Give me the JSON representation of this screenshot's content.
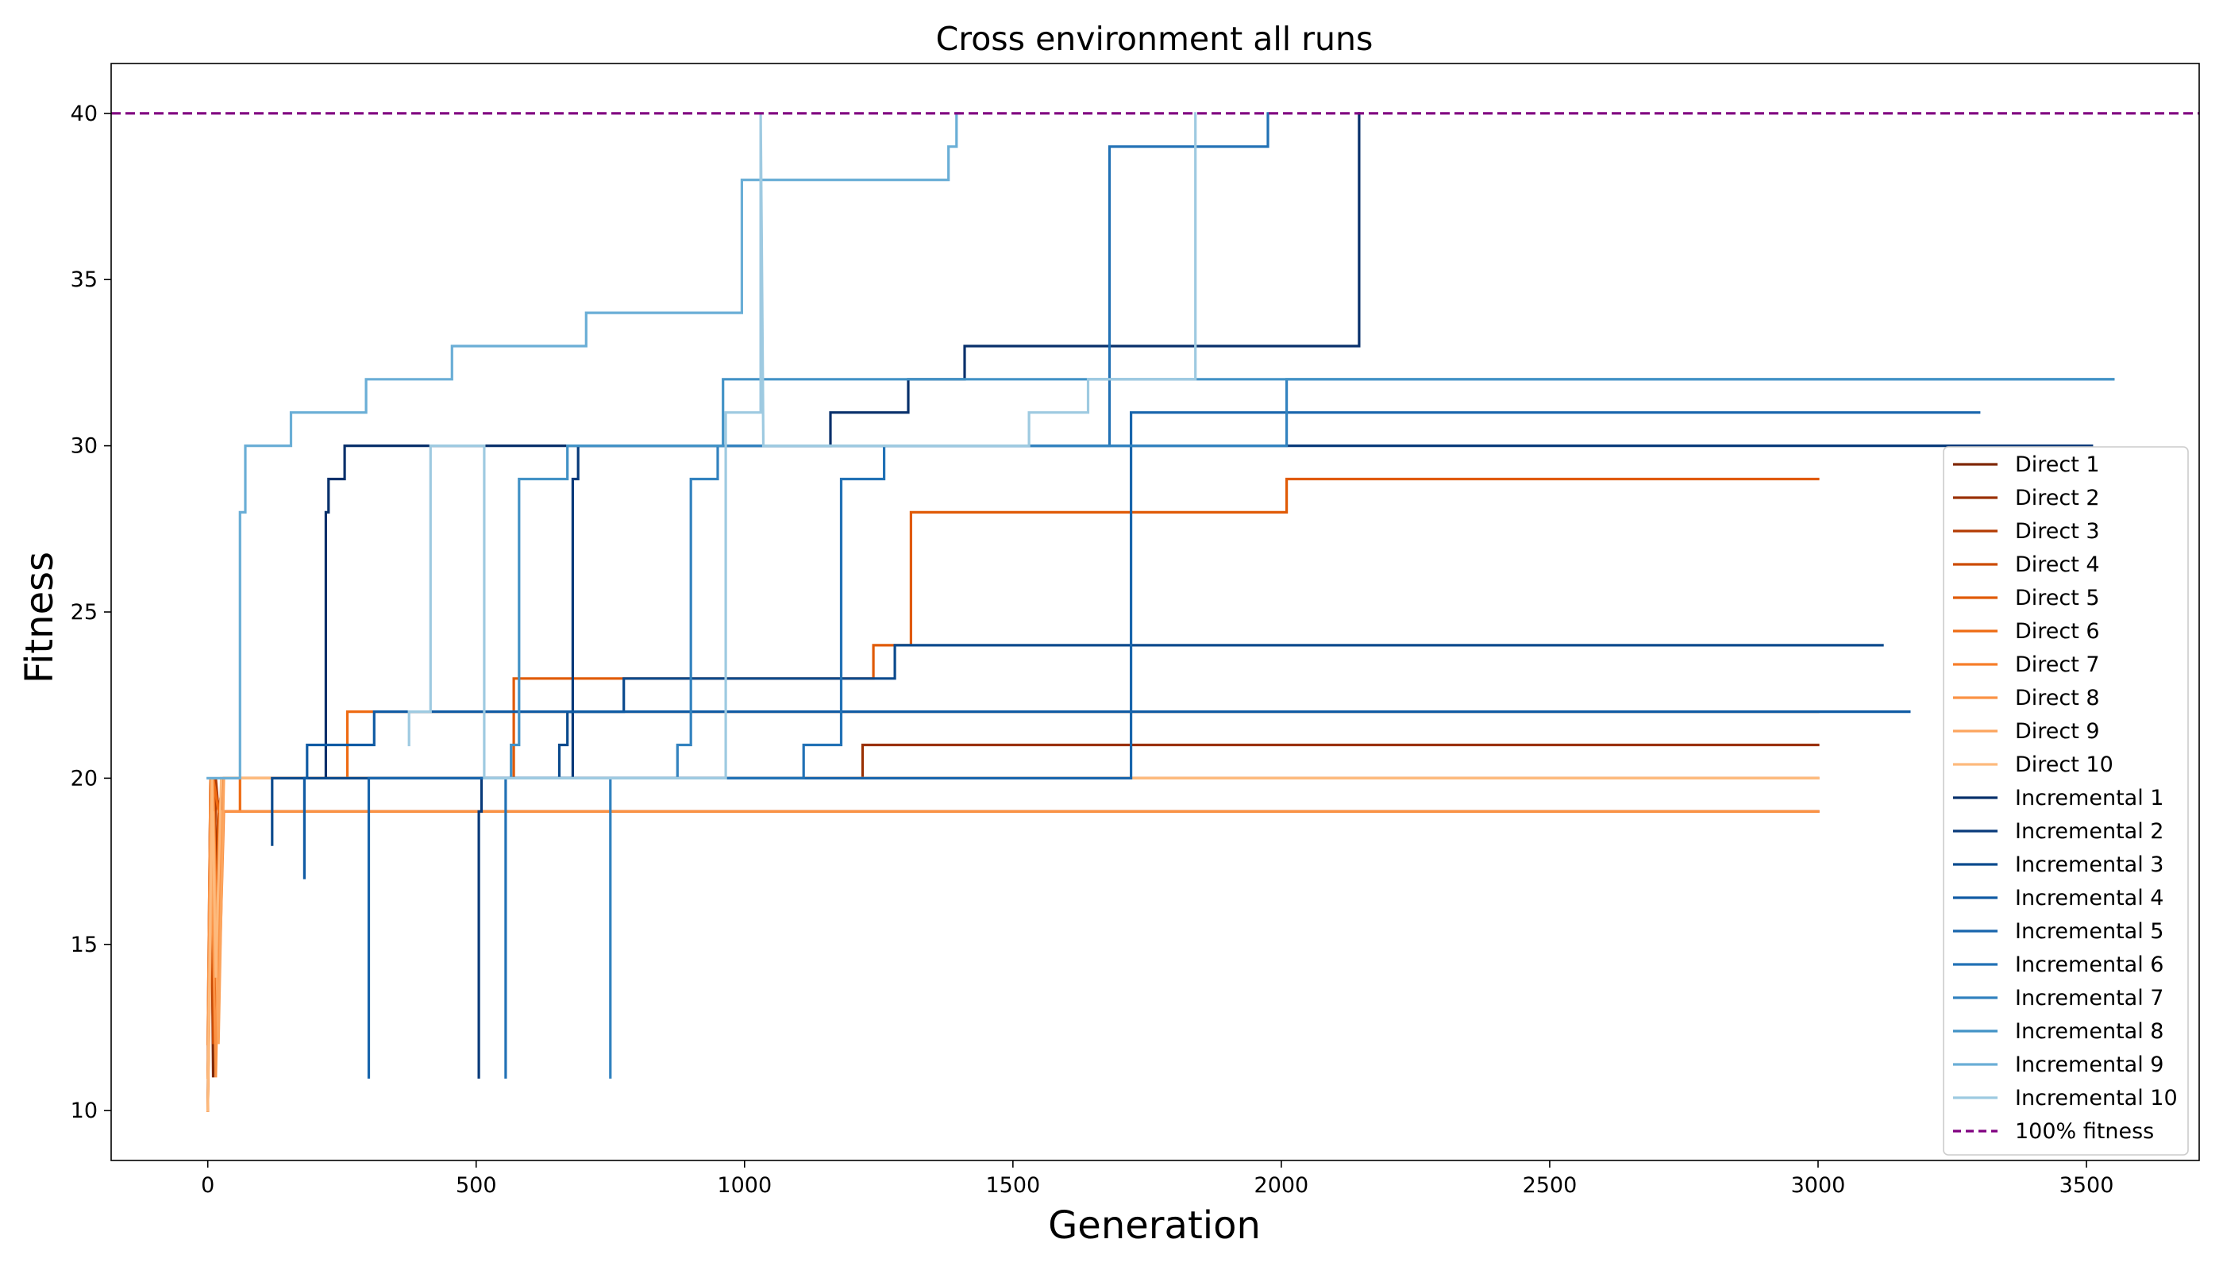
{
  "chart_data": {
    "type": "line",
    "title": "Cross environment all runs",
    "xlabel": "Generation",
    "ylabel": "Fitness",
    "xlim": [
      -180,
      3710
    ],
    "ylim": [
      8.5,
      41.5
    ],
    "xticks": [
      0,
      500,
      1000,
      1500,
      2000,
      2500,
      3000,
      3500
    ],
    "yticks": [
      10,
      15,
      20,
      25,
      30,
      35,
      40
    ],
    "grid": false,
    "legend_position": "right",
    "reference_line": {
      "name": "100% fitness",
      "y": 40,
      "style": "dashed",
      "color": "#800080"
    },
    "series": [
      {
        "name": "Direct 1",
        "color": "#7f2704",
        "x": [
          0,
          5,
          10,
          15,
          20,
          30,
          3000
        ],
        "y": [
          10,
          20,
          11,
          17,
          19,
          19,
          19
        ]
      },
      {
        "name": "Direct 2",
        "color": "#9a3003",
        "x": [
          0,
          5,
          10,
          20,
          30,
          1220,
          1220,
          3000
        ],
        "y": [
          12,
          20,
          15,
          19,
          20,
          20,
          21,
          21
        ]
      },
      {
        "name": "Direct 3",
        "color": "#b33b02",
        "x": [
          0,
          5,
          10,
          15,
          20,
          30,
          3000
        ],
        "y": [
          11,
          20,
          13,
          20,
          19,
          19,
          19
        ]
      },
      {
        "name": "Direct 4",
        "color": "#cc4a02",
        "x": [
          0,
          5,
          10,
          20,
          30,
          3000
        ],
        "y": [
          10,
          19,
          12,
          18,
          20,
          20
        ]
      },
      {
        "name": "Direct 5",
        "color": "#e05a06",
        "x": [
          0,
          8,
          15,
          20,
          30,
          570,
          570,
          1240,
          1240,
          1310,
          1310,
          2010,
          2010,
          3000
        ],
        "y": [
          10,
          19,
          13,
          19,
          20,
          20,
          23,
          23,
          24,
          24,
          28,
          28,
          29,
          29
        ]
      },
      {
        "name": "Direct 6",
        "color": "#ee6b13",
        "x": [
          0,
          10,
          20,
          60,
          60,
          260,
          260,
          3000
        ],
        "y": [
          11,
          20,
          19,
          19,
          20,
          20,
          22,
          22
        ]
      },
      {
        "name": "Direct 7",
        "color": "#f67d29",
        "x": [
          0,
          10,
          20,
          30,
          3000
        ],
        "y": [
          10,
          20,
          13,
          19,
          19
        ]
      },
      {
        "name": "Direct 8",
        "color": "#fb9244",
        "x": [
          0,
          5,
          15,
          25,
          3000
        ],
        "y": [
          12,
          20,
          11,
          19,
          19
        ]
      },
      {
        "name": "Direct 9",
        "color": "#fca55e",
        "x": [
          0,
          10,
          20,
          30,
          3000
        ],
        "y": [
          11,
          19,
          12,
          20,
          20
        ]
      },
      {
        "name": "Direct 10",
        "color": "#fdba7d",
        "x": [
          0,
          8,
          15,
          25,
          1110,
          1110,
          3000
        ],
        "y": [
          10,
          20,
          14,
          20,
          20,
          20,
          20
        ]
      },
      {
        "name": "Incremental 1",
        "color": "#08306b",
        "x": [
          220,
          220,
          225,
          225,
          255,
          255,
          1160,
          1160,
          1305,
          1305,
          1410,
          1410,
          2145,
          2145
        ],
        "y": [
          20,
          28,
          28,
          29,
          29,
          30,
          30,
          31,
          31,
          32,
          32,
          33,
          33,
          40
        ]
      },
      {
        "name": "Incremental 2",
        "color": "#083a7a",
        "x": [
          505,
          505,
          510,
          510,
          680,
          680,
          690,
          690,
          3510
        ],
        "y": [
          11,
          19,
          19,
          20,
          20,
          29,
          29,
          30,
          30
        ]
      },
      {
        "name": "Incremental 3",
        "color": "#0b4a8d",
        "x": [
          120,
          120,
          125,
          125,
          655,
          655,
          670,
          670,
          775,
          775,
          1280,
          1280,
          3120
        ],
        "y": [
          18,
          20,
          20,
          20,
          20,
          21,
          21,
          22,
          22,
          23,
          23,
          24,
          24
        ]
      },
      {
        "name": "Incremental 4",
        "color": "#105ba4",
        "x": [
          180,
          180,
          185,
          185,
          310,
          310,
          3170
        ],
        "y": [
          17,
          20,
          20,
          21,
          21,
          22,
          22
        ]
      },
      {
        "name": "Incremental 5",
        "color": "#1865ac",
        "x": [
          300,
          300,
          305,
          305,
          1720,
          1720,
          3300
        ],
        "y": [
          11,
          20,
          20,
          20,
          20,
          31,
          31
        ]
      },
      {
        "name": "Incremental 6",
        "color": "#2171b5",
        "x": [
          555,
          555,
          560,
          560,
          1110,
          1110,
          1180,
          1180,
          1260,
          1260,
          1680,
          1680,
          1975,
          1975
        ],
        "y": [
          11,
          20,
          20,
          20,
          20,
          21,
          21,
          29,
          29,
          30,
          30,
          39,
          39,
          40
        ]
      },
      {
        "name": "Incremental 7",
        "color": "#3282bf",
        "x": [
          750,
          750,
          755,
          755,
          875,
          875,
          900,
          900,
          950,
          950,
          2010,
          2010,
          3550
        ],
        "y": [
          11,
          20,
          20,
          20,
          20,
          21,
          21,
          29,
          29,
          30,
          30,
          32,
          32
        ]
      },
      {
        "name": "Incremental 8",
        "color": "#4292c6",
        "x": [
          565,
          565,
          580,
          580,
          670,
          670,
          960,
          960,
          3550
        ],
        "y": [
          20,
          21,
          21,
          29,
          29,
          30,
          30,
          32,
          32
        ]
      },
      {
        "name": "Incremental 9",
        "color": "#6aaed6",
        "x": [
          0,
          60,
          60,
          70,
          70,
          155,
          155,
          295,
          295,
          455,
          455,
          705,
          705,
          995,
          995,
          1380,
          1380,
          1395,
          1395,
          1400
        ],
        "y": [
          20,
          20,
          28,
          28,
          30,
          30,
          31,
          31,
          32,
          32,
          33,
          33,
          34,
          34,
          38,
          38,
          39,
          39,
          40,
          40
        ]
      },
      {
        "name": "Incremental 10",
        "color": "#9ecae1",
        "x": [
          375,
          375,
          380,
          380,
          415,
          415,
          515,
          515,
          965,
          965,
          1030,
          1030,
          1035,
          1530,
          1530,
          1640,
          1640,
          1840,
          1840
        ],
        "y": [
          21,
          22,
          22,
          22,
          22,
          30,
          30,
          20,
          20,
          31,
          31,
          40,
          30,
          30,
          31,
          31,
          32,
          32,
          40
        ]
      }
    ]
  }
}
